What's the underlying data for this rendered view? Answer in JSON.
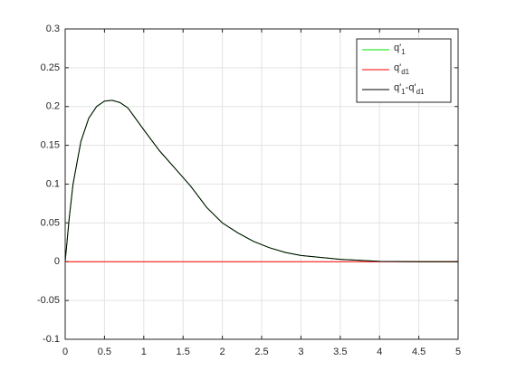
{
  "chart_data": {
    "type": "line",
    "x": [
      0,
      0.05,
      0.1,
      0.2,
      0.3,
      0.4,
      0.5,
      0.6,
      0.7,
      0.8,
      1.0,
      1.2,
      1.4,
      1.6,
      1.8,
      2.0,
      2.2,
      2.4,
      2.6,
      2.8,
      3.0,
      3.5,
      4.0,
      4.5,
      5.0
    ],
    "series": [
      {
        "name": [
          "q'",
          "1"
        ],
        "color": "#00e000",
        "values": [
          0,
          0.055,
          0.1,
          0.155,
          0.185,
          0.2,
          0.207,
          0.208,
          0.205,
          0.198,
          0.17,
          0.143,
          0.12,
          0.097,
          0.07,
          0.05,
          0.037,
          0.026,
          0.018,
          0.012,
          0.008,
          0.003,
          0.0005,
          0,
          0
        ]
      },
      {
        "name": [
          "q'",
          "d1"
        ],
        "color": "#ff0000",
        "values": [
          0,
          0,
          0,
          0,
          0,
          0,
          0,
          0,
          0,
          0,
          0,
          0,
          0,
          0,
          0,
          0,
          0,
          0,
          0,
          0,
          0,
          0,
          0,
          0,
          0
        ]
      },
      {
        "name": [
          "q'",
          "1",
          "-q'",
          "d1"
        ],
        "color": "#000000",
        "values": [
          0,
          0.055,
          0.1,
          0.155,
          0.185,
          0.2,
          0.207,
          0.208,
          0.205,
          0.198,
          0.17,
          0.143,
          0.12,
          0.097,
          0.07,
          0.05,
          0.037,
          0.026,
          0.018,
          0.012,
          0.008,
          0.003,
          0.0005,
          0,
          0
        ]
      }
    ],
    "xlim": [
      0,
      5
    ],
    "xticks": [
      0,
      0.5,
      1,
      1.5,
      2,
      2.5,
      3,
      3.5,
      4,
      4.5,
      5
    ],
    "ylim": [
      -0.1,
      0.3
    ],
    "yticks": [
      -0.1,
      -0.05,
      0,
      0.05,
      0.1,
      0.15,
      0.2,
      0.25,
      0.3
    ],
    "grid": true,
    "legend": "northeast"
  }
}
